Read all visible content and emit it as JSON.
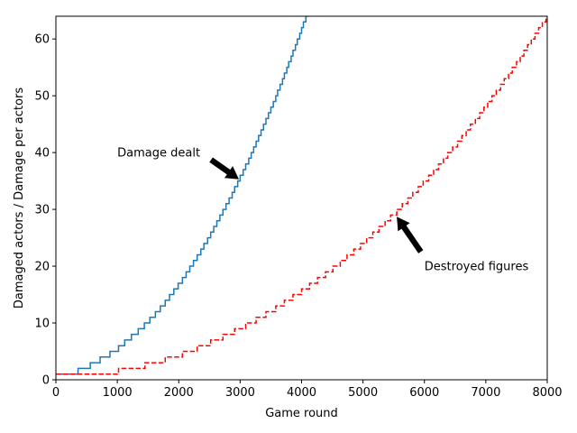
{
  "chart_data": {
    "type": "line",
    "xlabel": "Game round",
    "ylabel": "Damaged actors / Damage per actors",
    "xlim": [
      0,
      8000
    ],
    "ylim": [
      0,
      64
    ],
    "x_ticks": [
      0,
      1000,
      2000,
      3000,
      4000,
      5000,
      6000,
      7000,
      8000
    ],
    "x_tick_labels": [
      "0",
      "1000",
      "2000",
      "3000",
      "4000",
      "5000",
      "6000",
      "7000",
      "8000"
    ],
    "y_ticks": [
      0,
      10,
      20,
      30,
      40,
      50,
      60
    ],
    "y_tick_labels": [
      "0",
      "10",
      "20",
      "30",
      "40",
      "50",
      "60"
    ],
    "grid": false,
    "series": [
      {
        "color": "#1f77b4",
        "style": "solid",
        "step": "post",
        "x": [
          0,
          360,
          560,
          720,
          880,
          1020,
          1120,
          1230,
          1340,
          1440,
          1530,
          1620,
          1700,
          1780,
          1850,
          1920,
          1990,
          2060,
          2120,
          2180,
          2240,
          2300,
          2360,
          2410,
          2470,
          2520,
          2570,
          2620,
          2670,
          2720,
          2770,
          2820,
          2870,
          2910,
          2960,
          3000,
          3050,
          3090,
          3140,
          3180,
          3220,
          3260,
          3300,
          3340,
          3380,
          3420,
          3460,
          3500,
          3540,
          3580,
          3610,
          3650,
          3690,
          3720,
          3760,
          3790,
          3830,
          3860,
          3900,
          3930,
          3970,
          4000,
          4030,
          4070,
          4100,
          4130,
          4160,
          4200,
          4230,
          4260
        ],
        "y": [
          1,
          2,
          3,
          4,
          5,
          6,
          7,
          8,
          9,
          10,
          11,
          12,
          13,
          14,
          15,
          16,
          17,
          18,
          19,
          20,
          21,
          22,
          23,
          24,
          25,
          26,
          27,
          28,
          29,
          30,
          31,
          32,
          33,
          34,
          35,
          36,
          37,
          38,
          39,
          40,
          41,
          42,
          43,
          44,
          45,
          46,
          47,
          48,
          49,
          50,
          51,
          52,
          53,
          54,
          55,
          56,
          57,
          58,
          59,
          60,
          61,
          62,
          63,
          64,
          65,
          66,
          67,
          68,
          69,
          70
        ]
      },
      {
        "color": "#ff0000",
        "style": "dashed",
        "step": "post",
        "x": [
          0,
          1020,
          1450,
          1780,
          2060,
          2300,
          2520,
          2720,
          2910,
          3090,
          3260,
          3420,
          3580,
          3720,
          3860,
          4000,
          4130,
          4260,
          4390,
          4510,
          4630,
          4740,
          4850,
          4960,
          5060,
          5160,
          5260,
          5360,
          5450,
          5550,
          5640,
          5730,
          5810,
          5900,
          5980,
          6070,
          6150,
          6230,
          6310,
          6380,
          6460,
          6540,
          6610,
          6680,
          6750,
          6830,
          6900,
          6970,
          7030,
          7100,
          7170,
          7240,
          7300,
          7370,
          7430,
          7500,
          7560,
          7620,
          7680,
          7740,
          7800,
          7860,
          7920,
          7980
        ],
        "y": [
          1,
          2,
          3,
          4,
          5,
          6,
          7,
          8,
          9,
          10,
          11,
          12,
          13,
          14,
          15,
          16,
          17,
          18,
          19,
          20,
          21,
          22,
          23,
          24,
          25,
          26,
          27,
          28,
          29,
          30,
          31,
          32,
          33,
          34,
          35,
          36,
          37,
          38,
          39,
          40,
          41,
          42,
          43,
          44,
          45,
          46,
          47,
          48,
          49,
          50,
          51,
          52,
          53,
          54,
          55,
          56,
          57,
          58,
          59,
          60,
          61,
          62,
          63,
          64
        ]
      }
    ],
    "annotations": [
      {
        "text": "Damage dealt",
        "text_x": 1000,
        "text_y": 40,
        "point_x": 2980,
        "point_y": 35.3,
        "ha": "left"
      },
      {
        "text": "Destroyed figures",
        "text_x": 6000,
        "text_y": 20,
        "point_x": 5550,
        "point_y": 28.7,
        "ha": "left"
      }
    ]
  }
}
